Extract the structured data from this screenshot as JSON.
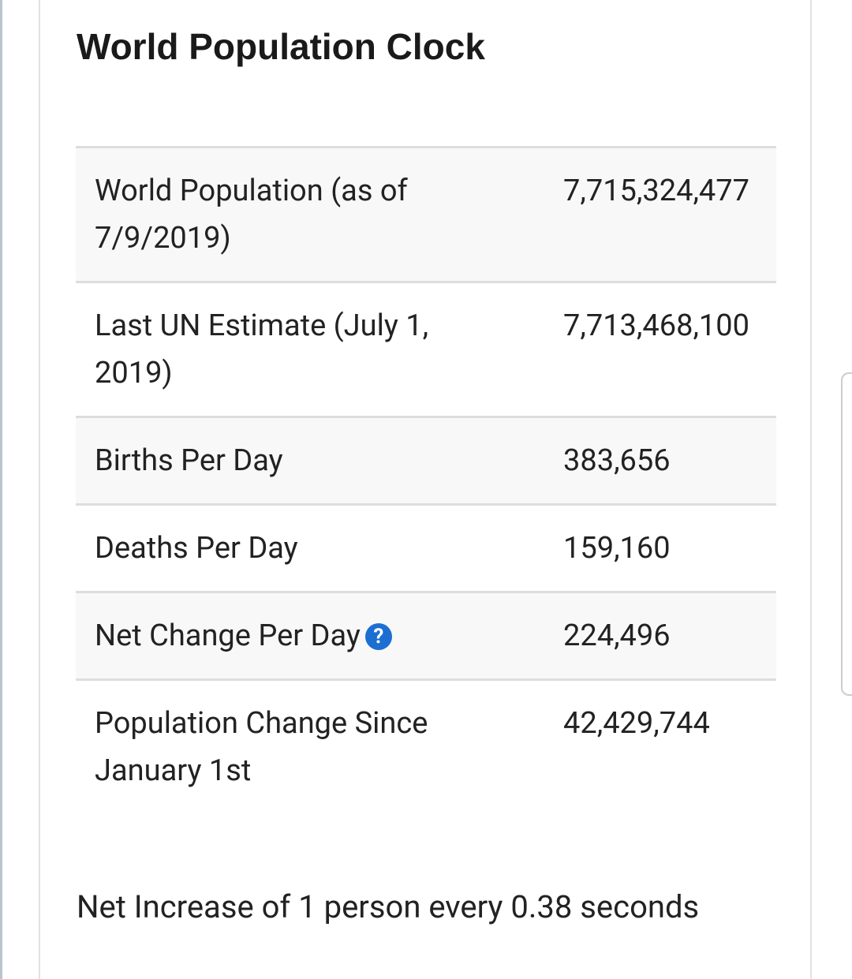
{
  "header": {
    "title": "World Population Clock"
  },
  "table": {
    "rows": [
      [
        "World Population (as of 7/9/2019)",
        "7,715,324,477"
      ],
      [
        "Last UN Estimate (July 1, 2019)",
        "7,713,468,100"
      ],
      [
        "Births Per Day",
        "383,656"
      ],
      [
        "Deaths Per Day",
        "159,160"
      ],
      [
        "Net Change Per Day",
        "224,496"
      ],
      [
        "Population Change Since January 1st",
        "42,429,744"
      ]
    ]
  },
  "footer": {
    "text": "Net Increase of 1 person every 0.38 seconds"
  }
}
